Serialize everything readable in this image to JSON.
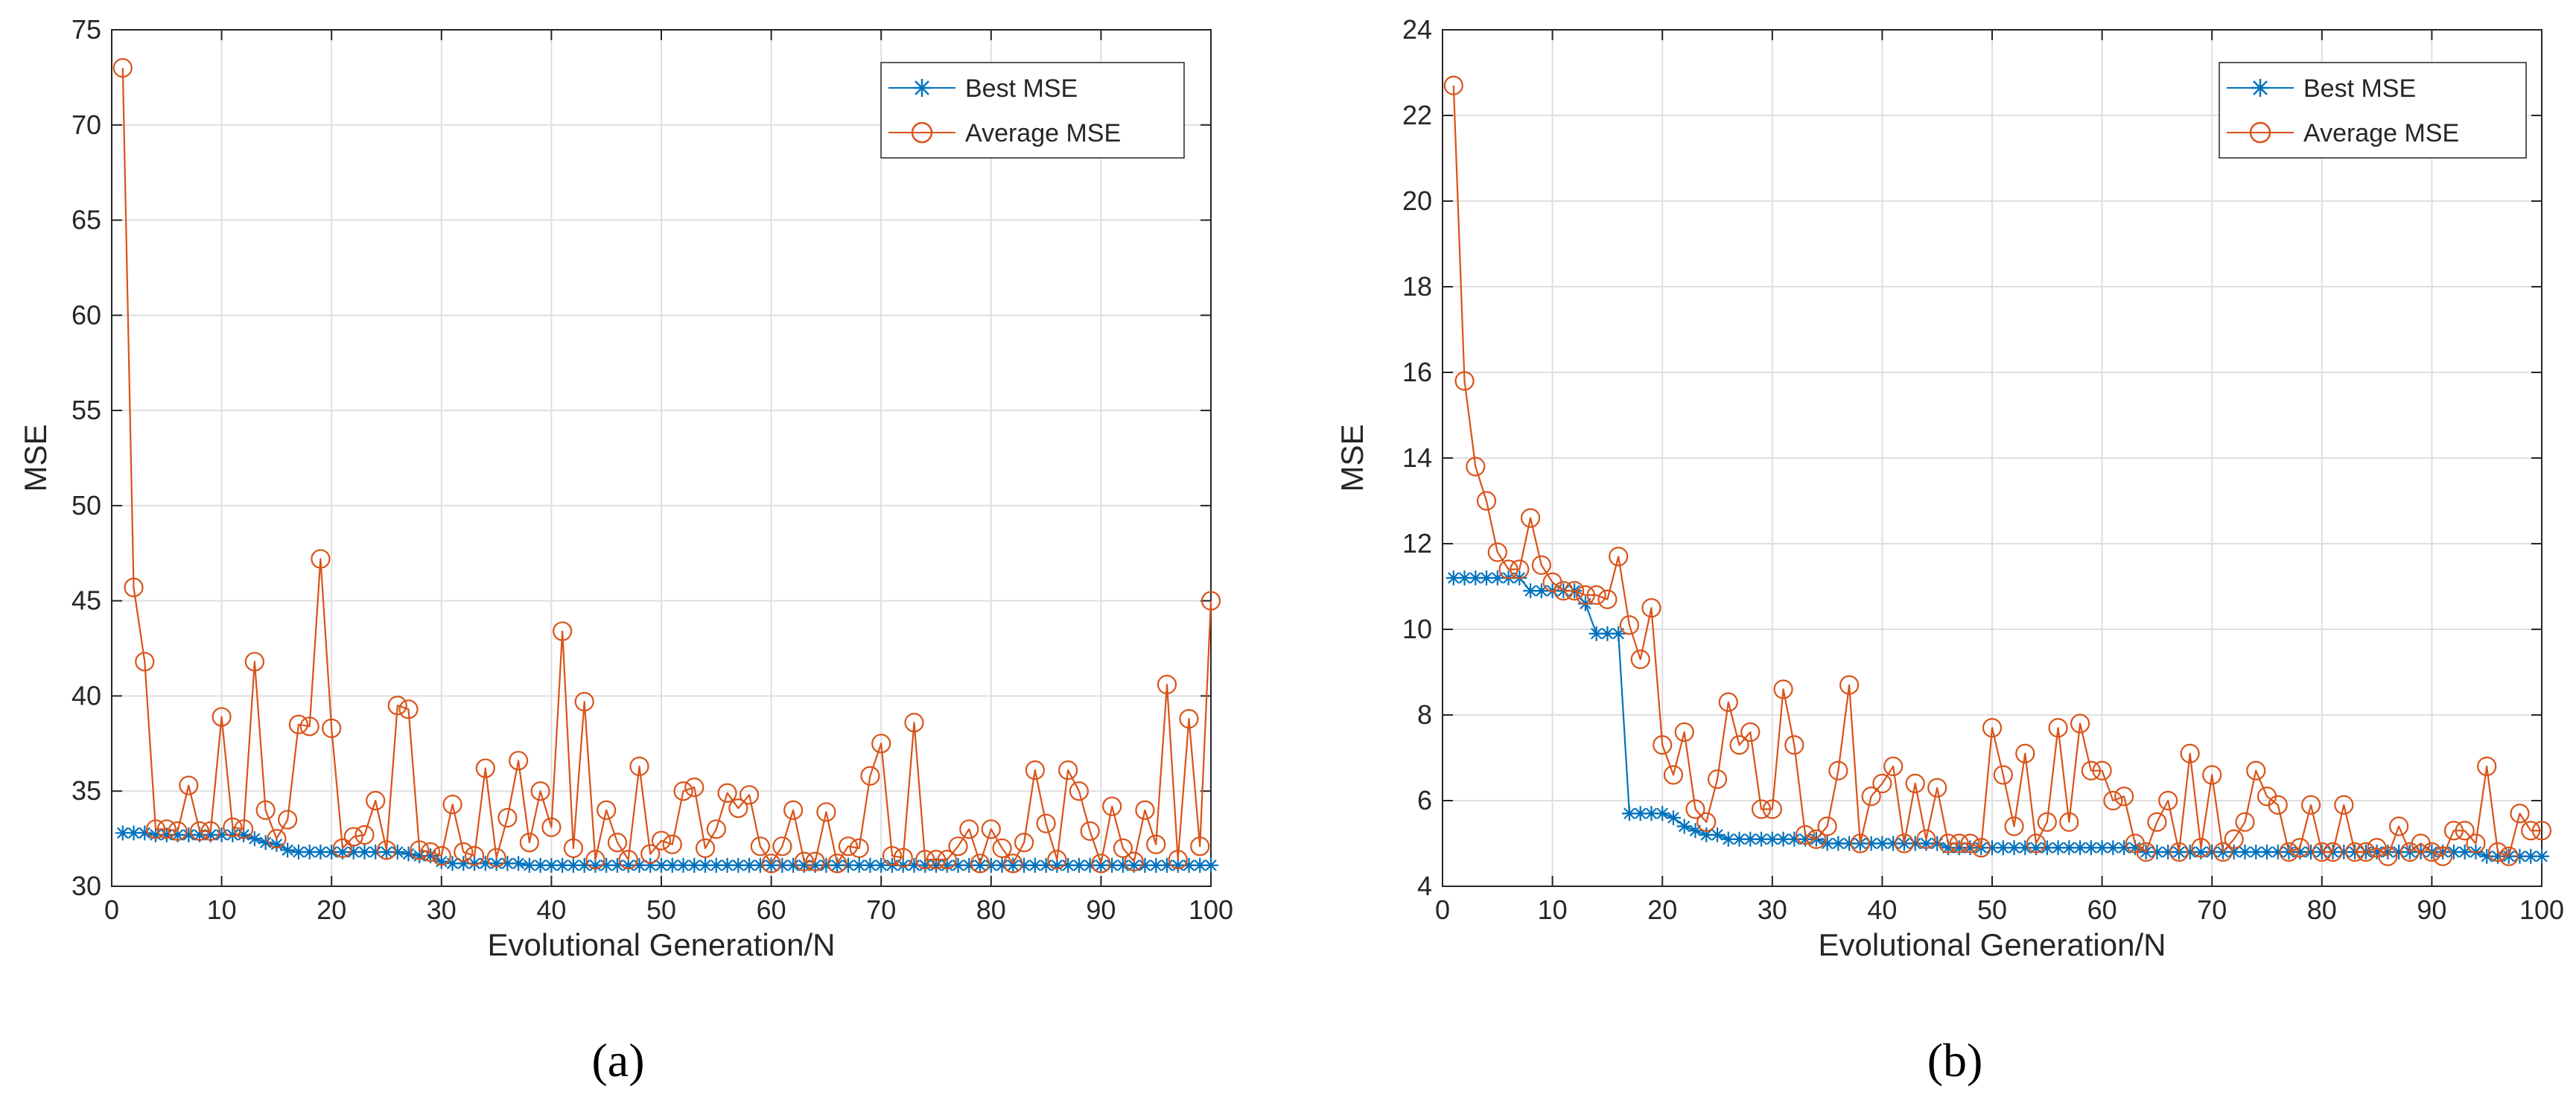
{
  "chart_data": [
    {
      "type": "line",
      "panel_label": "(a)",
      "xlabel": "Evolutional Generation/N",
      "ylabel": "MSE",
      "xlim": [
        0,
        100
      ],
      "ylim": [
        30,
        75
      ],
      "xticks": [
        0,
        10,
        20,
        30,
        40,
        50,
        60,
        70,
        80,
        90,
        100
      ],
      "yticks": [
        30,
        35,
        40,
        45,
        50,
        55,
        60,
        65,
        70,
        75
      ],
      "grid": true,
      "legend_position": "top-right",
      "series": [
        {
          "name": "Best MSE",
          "color": "#0072BD",
          "marker": "asterisk",
          "x": [
            1,
            2,
            3,
            4,
            5,
            6,
            7,
            8,
            9,
            10,
            11,
            12,
            13,
            14,
            15,
            16,
            17,
            18,
            19,
            20,
            21,
            22,
            23,
            24,
            25,
            26,
            27,
            28,
            29,
            30,
            31,
            32,
            33,
            34,
            35,
            36,
            37,
            38,
            39,
            40,
            41,
            42,
            43,
            44,
            45,
            46,
            47,
            48,
            49,
            50,
            51,
            52,
            53,
            54,
            55,
            56,
            57,
            58,
            59,
            60,
            61,
            62,
            63,
            64,
            65,
            66,
            67,
            68,
            69,
            70,
            71,
            72,
            73,
            74,
            75,
            76,
            77,
            78,
            79,
            80,
            81,
            82,
            83,
            84,
            85,
            86,
            87,
            88,
            89,
            90,
            91,
            92,
            93,
            94,
            95,
            96,
            97,
            98,
            99,
            100
          ],
          "values": [
            32.8,
            32.8,
            32.8,
            32.7,
            32.7,
            32.7,
            32.7,
            32.7,
            32.7,
            32.7,
            32.7,
            32.7,
            32.5,
            32.3,
            32.2,
            31.9,
            31.8,
            31.8,
            31.8,
            31.8,
            31.8,
            31.8,
            31.8,
            31.8,
            31.8,
            31.8,
            31.7,
            31.6,
            31.6,
            31.3,
            31.2,
            31.2,
            31.2,
            31.2,
            31.2,
            31.2,
            31.2,
            31.1,
            31.1,
            31.1,
            31.1,
            31.1,
            31.1,
            31.1,
            31.1,
            31.1,
            31.1,
            31.1,
            31.1,
            31.1,
            31.1,
            31.1,
            31.1,
            31.1,
            31.1,
            31.1,
            31.1,
            31.1,
            31.1,
            31.1,
            31.1,
            31.1,
            31.1,
            31.1,
            31.1,
            31.1,
            31.1,
            31.1,
            31.1,
            31.1,
            31.1,
            31.1,
            31.1,
            31.1,
            31.1,
            31.1,
            31.1,
            31.1,
            31.1,
            31.1,
            31.1,
            31.1,
            31.1,
            31.1,
            31.1,
            31.1,
            31.1,
            31.1,
            31.1,
            31.1,
            31.1,
            31.1,
            31.1,
            31.1,
            31.1,
            31.1,
            31.1,
            31.1,
            31.1,
            31.1
          ]
        },
        {
          "name": "Average MSE",
          "color": "#D95319",
          "marker": "circle",
          "x": [
            1,
            2,
            3,
            4,
            5,
            6,
            7,
            8,
            9,
            10,
            11,
            12,
            13,
            14,
            15,
            16,
            17,
            18,
            19,
            20,
            21,
            22,
            23,
            24,
            25,
            26,
            27,
            28,
            29,
            30,
            31,
            32,
            33,
            34,
            35,
            36,
            37,
            38,
            39,
            40,
            41,
            42,
            43,
            44,
            45,
            46,
            47,
            48,
            49,
            50,
            51,
            52,
            53,
            54,
            55,
            56,
            57,
            58,
            59,
            60,
            61,
            62,
            63,
            64,
            65,
            66,
            67,
            68,
            69,
            70,
            71,
            72,
            73,
            74,
            75,
            76,
            77,
            78,
            79,
            80,
            81,
            82,
            83,
            84,
            85,
            86,
            87,
            88,
            89,
            90,
            91,
            92,
            93,
            94,
            95,
            96,
            97,
            98,
            99,
            100
          ],
          "values": [
            73.0,
            45.7,
            41.8,
            33.0,
            33.0,
            32.9,
            35.3,
            32.9,
            32.9,
            38.9,
            33.1,
            33.0,
            41.8,
            34.0,
            32.5,
            33.5,
            38.5,
            38.4,
            47.2,
            38.3,
            32.0,
            32.6,
            32.7,
            34.5,
            31.9,
            39.5,
            39.3,
            31.9,
            31.8,
            31.6,
            34.3,
            31.8,
            31.6,
            36.2,
            31.5,
            33.6,
            36.6,
            32.3,
            35.0,
            33.1,
            43.4,
            32.0,
            39.7,
            31.4,
            34.0,
            32.3,
            31.4,
            36.3,
            31.7,
            32.4,
            32.2,
            35.0,
            35.2,
            32.0,
            33.0,
            34.9,
            34.1,
            34.8,
            32.1,
            31.2,
            32.1,
            34.0,
            31.3,
            31.3,
            33.9,
            31.2,
            32.1,
            32.0,
            35.8,
            37.5,
            31.6,
            31.5,
            38.6,
            31.4,
            31.4,
            31.4,
            32.1,
            33.0,
            31.2,
            33.0,
            32.0,
            31.2,
            32.3,
            36.1,
            33.3,
            31.4,
            36.1,
            35.0,
            32.9,
            31.2,
            34.2,
            32.0,
            31.3,
            34.0,
            32.2,
            40.6,
            31.4,
            38.8,
            32.1,
            45.0
          ]
        }
      ]
    },
    {
      "type": "line",
      "panel_label": "(b)",
      "xlabel": "Evolutional Generation/N",
      "ylabel": "MSE",
      "xlim": [
        0,
        100
      ],
      "ylim": [
        4,
        24
      ],
      "xticks": [
        0,
        10,
        20,
        30,
        40,
        50,
        60,
        70,
        80,
        90,
        100
      ],
      "yticks": [
        4,
        6,
        8,
        10,
        12,
        14,
        16,
        18,
        20,
        22,
        24
      ],
      "grid": true,
      "legend_position": "top-right",
      "series": [
        {
          "name": "Best MSE",
          "color": "#0072BD",
          "marker": "asterisk",
          "x": [
            1,
            2,
            3,
            4,
            5,
            6,
            7,
            8,
            9,
            10,
            11,
            12,
            13,
            14,
            15,
            16,
            17,
            18,
            19,
            20,
            21,
            22,
            23,
            24,
            25,
            26,
            27,
            28,
            29,
            30,
            31,
            32,
            33,
            34,
            35,
            36,
            37,
            38,
            39,
            40,
            41,
            42,
            43,
            44,
            45,
            46,
            47,
            48,
            49,
            50,
            51,
            52,
            53,
            54,
            55,
            56,
            57,
            58,
            59,
            60,
            61,
            62,
            63,
            64,
            65,
            66,
            67,
            68,
            69,
            70,
            71,
            72,
            73,
            74,
            75,
            76,
            77,
            78,
            79,
            80,
            81,
            82,
            83,
            84,
            85,
            86,
            87,
            88,
            89,
            90,
            91,
            92,
            93,
            94,
            95,
            96,
            97,
            98,
            99,
            100
          ],
          "values": [
            11.2,
            11.2,
            11.2,
            11.2,
            11.2,
            11.2,
            11.2,
            10.9,
            10.9,
            10.9,
            10.9,
            10.9,
            10.6,
            9.9,
            9.9,
            9.9,
            5.7,
            5.7,
            5.7,
            5.7,
            5.6,
            5.4,
            5.3,
            5.2,
            5.2,
            5.1,
            5.1,
            5.1,
            5.1,
            5.1,
            5.1,
            5.1,
            5.1,
            5.1,
            5.0,
            5.0,
            5.0,
            5.0,
            5.0,
            5.0,
            5.0,
            5.0,
            5.0,
            5.0,
            5.0,
            4.9,
            4.9,
            4.9,
            4.9,
            4.9,
            4.9,
            4.9,
            4.9,
            4.9,
            4.9,
            4.9,
            4.9,
            4.9,
            4.9,
            4.9,
            4.9,
            4.9,
            4.9,
            4.8,
            4.8,
            4.8,
            4.8,
            4.8,
            4.8,
            4.8,
            4.8,
            4.8,
            4.8,
            4.8,
            4.8,
            4.8,
            4.8,
            4.8,
            4.8,
            4.8,
            4.8,
            4.8,
            4.8,
            4.8,
            4.8,
            4.8,
            4.8,
            4.8,
            4.8,
            4.8,
            4.8,
            4.8,
            4.8,
            4.8,
            4.7,
            4.7,
            4.7,
            4.7,
            4.7,
            4.7
          ]
        },
        {
          "name": "Average MSE",
          "color": "#D95319",
          "marker": "circle",
          "x": [
            1,
            2,
            3,
            4,
            5,
            6,
            7,
            8,
            9,
            10,
            11,
            12,
            13,
            14,
            15,
            16,
            17,
            18,
            19,
            20,
            21,
            22,
            23,
            24,
            25,
            26,
            27,
            28,
            29,
            30,
            31,
            32,
            33,
            34,
            35,
            36,
            37,
            38,
            39,
            40,
            41,
            42,
            43,
            44,
            45,
            46,
            47,
            48,
            49,
            50,
            51,
            52,
            53,
            54,
            55,
            56,
            57,
            58,
            59,
            60,
            61,
            62,
            63,
            64,
            65,
            66,
            67,
            68,
            69,
            70,
            71,
            72,
            73,
            74,
            75,
            76,
            77,
            78,
            79,
            80,
            81,
            82,
            83,
            84,
            85,
            86,
            87,
            88,
            89,
            90,
            91,
            92,
            93,
            94,
            95,
            96,
            97,
            98,
            99,
            100
          ],
          "values": [
            22.7,
            15.8,
            13.8,
            13.0,
            11.8,
            11.4,
            11.4,
            12.6,
            11.5,
            11.1,
            10.9,
            10.9,
            10.8,
            10.8,
            10.7,
            11.7,
            10.1,
            9.3,
            10.5,
            7.3,
            6.6,
            7.6,
            5.8,
            5.5,
            6.5,
            8.3,
            7.3,
            7.6,
            5.8,
            5.8,
            8.6,
            7.3,
            5.2,
            5.1,
            5.4,
            6.7,
            8.7,
            5.0,
            6.1,
            6.4,
            6.8,
            5.0,
            6.4,
            5.1,
            6.3,
            5.0,
            5.0,
            5.0,
            4.9,
            7.7,
            6.6,
            5.4,
            7.1,
            5.0,
            5.5,
            7.7,
            5.5,
            7.8,
            6.7,
            6.7,
            6.0,
            6.1,
            5.0,
            4.8,
            5.5,
            6.0,
            4.8,
            7.1,
            4.9,
            6.6,
            4.8,
            5.1,
            5.5,
            6.7,
            6.1,
            5.9,
            4.8,
            4.9,
            5.9,
            4.8,
            4.8,
            5.9,
            4.8,
            4.8,
            4.9,
            4.7,
            5.4,
            4.8,
            5.0,
            4.8,
            4.7,
            5.3,
            5.3,
            5.0,
            6.8,
            4.8,
            4.7,
            5.7,
            5.3,
            5.3
          ]
        }
      ]
    }
  ]
}
